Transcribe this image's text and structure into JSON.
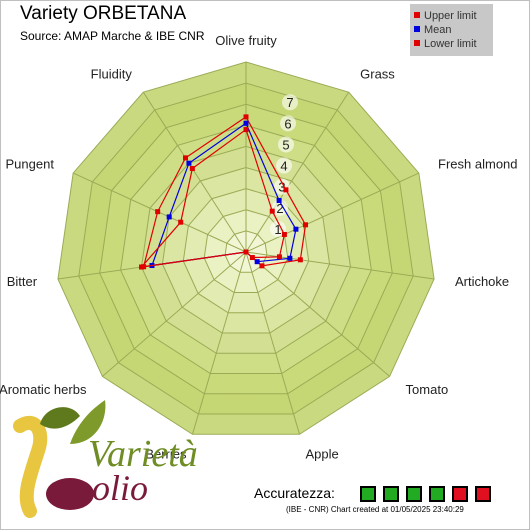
{
  "title": "Variety ORBETANA",
  "subtitle": "Source: AMAP Marche & IBE CNR",
  "legend": [
    {
      "label": "Upper limit",
      "color": "#e00000"
    },
    {
      "label": "Mean",
      "color": "#0000e0"
    },
    {
      "label": "Lower limit",
      "color": "#e00000"
    }
  ],
  "accuracy": {
    "label": "Accuratezza:",
    "boxes": [
      "#22aa22",
      "#22aa22",
      "#22aa22",
      "#22aa22",
      "#e01020",
      "#e01020"
    ]
  },
  "footer": "(IBE - CNR) Chart created at 01/05/2025 23:40:29",
  "logo": {
    "text_top": "Varietà",
    "text_bottom": "olio"
  },
  "chart_data": {
    "type": "radar",
    "title": "Variety ORBETANA",
    "subtitle": "Source: AMAP Marche & IBE CNR",
    "axes": [
      "Olive fruity",
      "Grass",
      "Fresh almond",
      "Artichoke",
      "Tomato",
      "Apple",
      "Berries",
      "Aromatic herbs",
      "Bitter",
      "Pungent",
      "Fluidity"
    ],
    "range": [
      0,
      9
    ],
    "ticks": [
      "1",
      "2",
      "3",
      "4",
      "5",
      "6",
      "7"
    ],
    "legend_position": "top-right",
    "series": [
      {
        "name": "Upper limit",
        "color": "#e00000",
        "values": [
          6.4,
          3.5,
          3.1,
          2.6,
          1.0,
          0.0,
          0.0,
          0.0,
          4.9,
          4.6,
          5.3
        ]
      },
      {
        "name": "Mean",
        "color": "#0000e0",
        "values": [
          6.1,
          2.9,
          2.6,
          2.1,
          0.7,
          0.0,
          0.0,
          0.0,
          4.5,
          4.0,
          5.0
        ]
      },
      {
        "name": "Lower limit",
        "color": "#e00000",
        "values": [
          5.8,
          2.3,
          2.0,
          1.6,
          0.4,
          0.0,
          0.0,
          0.0,
          5.0,
          3.4,
          4.7
        ]
      }
    ]
  }
}
